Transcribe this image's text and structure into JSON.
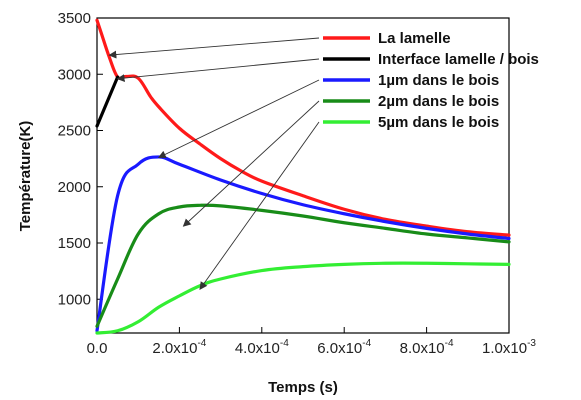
{
  "chart_data": {
    "type": "line",
    "xlabel": "Temps (s)",
    "ylabel": "Température(K)",
    "xlim": [
      0,
      0.001
    ],
    "ylim": [
      700,
      3500
    ],
    "x_ticks": [
      0,
      0.0002,
      0.0004,
      0.0006,
      0.0008,
      0.001
    ],
    "x_tick_labels": [
      {
        "mantissa": "0.0",
        "exponent": ""
      },
      {
        "mantissa": "2.0x10",
        "exponent": "-4"
      },
      {
        "mantissa": "4.0x10",
        "exponent": "-4"
      },
      {
        "mantissa": "6.0x10",
        "exponent": "-4"
      },
      {
        "mantissa": "8.0x10",
        "exponent": "-4"
      },
      {
        "mantissa": "1.0x10",
        "exponent": "-3"
      }
    ],
    "y_ticks": [
      1000,
      1500,
      2000,
      2500,
      3000,
      3500
    ],
    "y_tick_labels": [
      "1000",
      "1500",
      "2000",
      "2500",
      "3000",
      "3500"
    ],
    "legend_position": "top-right",
    "series": [
      {
        "name": "La lamelle",
        "color": "#ff1a1a",
        "points": [
          [
            0,
            3480
          ],
          [
            1e-05,
            3370
          ],
          [
            3e-05,
            3150
          ],
          [
            5e-05,
            2975
          ],
          [
            7e-05,
            2980
          ],
          [
            0.0001,
            2965
          ],
          [
            0.00013,
            2800
          ],
          [
            0.00015,
            2710
          ],
          [
            0.0002,
            2520
          ],
          [
            0.00025,
            2380
          ],
          [
            0.0003,
            2250
          ],
          [
            0.00035,
            2140
          ],
          [
            0.0004,
            2050
          ],
          [
            0.0005,
            1920
          ],
          [
            0.0006,
            1800
          ],
          [
            0.0007,
            1710
          ],
          [
            0.0008,
            1650
          ],
          [
            0.0009,
            1600
          ],
          [
            0.001,
            1570
          ]
        ]
      },
      {
        "name": "Interface lamelle / bois",
        "color": "#000000",
        "points": [
          [
            0,
            2540
          ],
          [
            5e-05,
            2975
          ]
        ]
      },
      {
        "name": "1µm dans le bois",
        "color": "#1a1aff",
        "points": [
          [
            0,
            720
          ],
          [
            5e-05,
            1920
          ],
          [
            0.0001,
            2200
          ],
          [
            0.00015,
            2265
          ],
          [
            0.0002,
            2200
          ],
          [
            0.0003,
            2060
          ],
          [
            0.0004,
            1940
          ],
          [
            0.0005,
            1840
          ],
          [
            0.0006,
            1760
          ],
          [
            0.0007,
            1690
          ],
          [
            0.0008,
            1630
          ],
          [
            0.0009,
            1580
          ],
          [
            0.001,
            1540
          ]
        ]
      },
      {
        "name": "2µm dans le bois",
        "color": "#188c18",
        "points": [
          [
            0,
            760
          ],
          [
            5e-05,
            1180
          ],
          [
            0.0001,
            1580
          ],
          [
            0.00015,
            1760
          ],
          [
            0.0002,
            1820
          ],
          [
            0.00025,
            1835
          ],
          [
            0.0003,
            1830
          ],
          [
            0.0004,
            1790
          ],
          [
            0.0005,
            1740
          ],
          [
            0.0006,
            1680
          ],
          [
            0.0007,
            1630
          ],
          [
            0.0008,
            1580
          ],
          [
            0.0009,
            1545
          ],
          [
            0.001,
            1510
          ]
        ]
      },
      {
        "name": "5µm dans le bois",
        "color": "#33ee33",
        "points": [
          [
            0,
            700
          ],
          [
            5e-05,
            720
          ],
          [
            0.0001,
            800
          ],
          [
            0.00015,
            930
          ],
          [
            0.0002,
            1030
          ],
          [
            0.00025,
            1120
          ],
          [
            0.0003,
            1180
          ],
          [
            0.0004,
            1255
          ],
          [
            0.0005,
            1290
          ],
          [
            0.0006,
            1310
          ],
          [
            0.0007,
            1320
          ],
          [
            0.0008,
            1320
          ],
          [
            0.0009,
            1315
          ],
          [
            0.001,
            1310
          ]
        ]
      }
    ],
    "annotations": [
      {
        "series": "La lamelle",
        "x": 3e-05,
        "y": 3170
      },
      {
        "series": "Interface lamelle / bois",
        "x": 5e-05,
        "y": 2960
      },
      {
        "series": "1µm dans le bois",
        "x": 0.00015,
        "y": 2260
      },
      {
        "series": "2µm dans le bois",
        "x": 0.00021,
        "y": 1650
      },
      {
        "series": "5µm dans le bois",
        "x": 0.00025,
        "y": 1090
      }
    ]
  }
}
